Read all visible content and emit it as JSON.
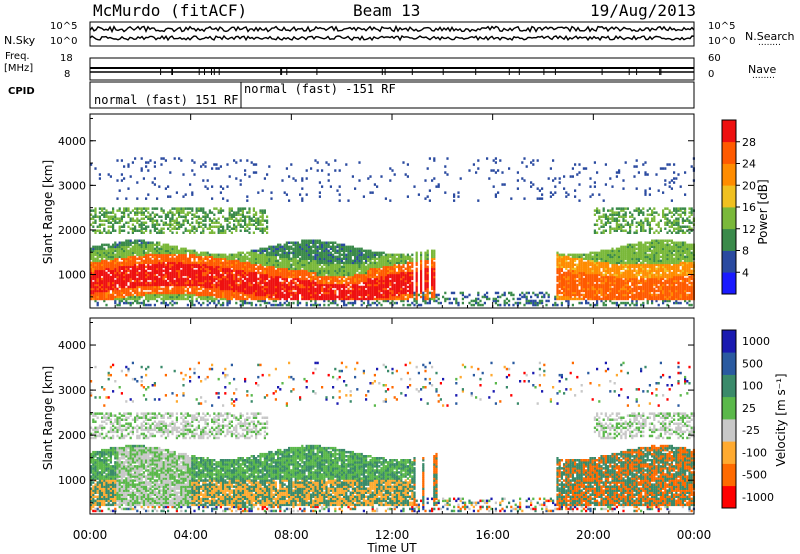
{
  "header": {
    "station": "McMurdo (fitACF)",
    "beam": "Beam 13",
    "date": "19/Aug/2013"
  },
  "side_labels": {
    "nsky": "N.Sky",
    "freq_top": "Freq.",
    "freq_unit": "[MHz]",
    "cpid": "CPID",
    "nsearch": "N.Search",
    "nave": "Nave",
    "dots": "........"
  },
  "noise_panel": {
    "left_ticks": [
      "10^5",
      "10^0"
    ],
    "right_ticks": [
      "10^5",
      "10^0"
    ]
  },
  "freq_panel": {
    "left_ticks": [
      "18",
      "8"
    ],
    "right_ticks": [
      "60",
      "0"
    ]
  },
  "cpid_panel": {
    "segments": [
      "normal (fast) 151 RF",
      "normal (fast) -151 RF"
    ]
  },
  "colors": {
    "power_scale": [
      "#1a1aff",
      "#2a4aa0",
      "#3a8a4a",
      "#7ab83a",
      "#f0c020",
      "#ff8c00",
      "#ff5a00",
      "#ee1010"
    ],
    "velocity_scale": [
      "#ff0000",
      "#ff6a00",
      "#ffaa30",
      "#c8c8c8",
      "#5ab84a",
      "#3a8a6a",
      "#2a5aa0",
      "#1a1ab0"
    ]
  },
  "chart_data": [
    {
      "type": "heatmap",
      "name": "power",
      "ylabel": "Slant Range [km]",
      "xlabel": "",
      "x_ticks": [
        "00:00",
        "04:00",
        "08:00",
        "12:00",
        "16:00",
        "20:00",
        "00:00"
      ],
      "y_ticks": [
        "1000",
        "2000",
        "3000",
        "4000"
      ],
      "ylim": [
        250,
        4600
      ],
      "xlim_hours": [
        0,
        24
      ],
      "colorbar_label": "Power [dB]",
      "colorbar_ticks": [
        "4",
        "8",
        "12",
        "16",
        "20",
        "24",
        "28"
      ]
    },
    {
      "type": "heatmap",
      "name": "velocity",
      "ylabel": "Slant Range [km]",
      "xlabel": "Time UT",
      "x_ticks": [
        "00:00",
        "04:00",
        "08:00",
        "12:00",
        "16:00",
        "20:00",
        "00:00"
      ],
      "y_ticks": [
        "1000",
        "2000",
        "3000",
        "4000"
      ],
      "ylim": [
        250,
        4600
      ],
      "xlim_hours": [
        0,
        24
      ],
      "colorbar_label": "Velocity [m s⁻¹]",
      "colorbar_ticks": [
        "1000",
        "500",
        "100",
        "25",
        "-25",
        "-100",
        "-500",
        "-1000"
      ]
    }
  ]
}
